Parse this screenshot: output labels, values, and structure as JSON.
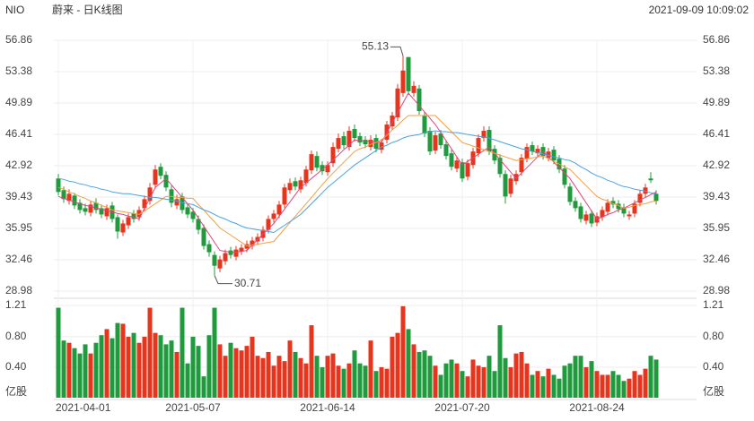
{
  "chart_data": {
    "type": "candlestick",
    "symbol": "NIO",
    "title": "蔚来 - 日K线图",
    "timestamp": "2021-09-09 10:09:02",
    "categories": [
      "2021-04-01",
      null,
      null,
      null,
      null,
      null,
      null,
      null,
      null,
      null,
      null,
      null,
      null,
      null,
      null,
      null,
      null,
      null,
      null,
      null,
      null,
      null,
      null,
      null,
      null,
      "2021-05-07",
      null,
      null,
      null,
      null,
      null,
      null,
      null,
      null,
      null,
      null,
      null,
      null,
      null,
      null,
      null,
      null,
      null,
      null,
      null,
      null,
      null,
      null,
      null,
      null,
      "2021-06-14",
      null,
      null,
      null,
      null,
      null,
      null,
      null,
      null,
      null,
      null,
      null,
      null,
      null,
      null,
      null,
      null,
      null,
      null,
      null,
      null,
      null,
      null,
      null,
      null,
      "2021-07-20",
      null,
      null,
      null,
      null,
      null,
      null,
      null,
      null,
      null,
      null,
      null,
      null,
      null,
      null,
      null,
      null,
      null,
      null,
      null,
      null,
      null,
      null,
      null,
      null,
      "2021-08-24",
      null,
      null,
      null,
      null,
      null,
      null,
      null,
      null,
      null,
      null,
      null
    ],
    "open": [
      41.5,
      40.2,
      39.0,
      39.6,
      38.8,
      38.2,
      37.7,
      38.8,
      38.2,
      37.3,
      38.5,
      37.2,
      35.5,
      36.3,
      37.6,
      37.2,
      38.2,
      39.0,
      40.8,
      42.8,
      41.9,
      40.3,
      38.5,
      39.5,
      38.3,
      37.8,
      37.0,
      36.0,
      34.2,
      33.0,
      31.5,
      32.3,
      33.5,
      32.8,
      33.4,
      33.7,
      34.0,
      34.5,
      34.9,
      35.8,
      37.0,
      37.5,
      38.6,
      40.2,
      41.2,
      40.3,
      41.0,
      42.4,
      44.0,
      43.0,
      42.2,
      43.2,
      44.8,
      46.2,
      45.0,
      47.0,
      46.2,
      45.8,
      45.0,
      46.0,
      44.7,
      45.8,
      47.3,
      48.3,
      51.0,
      55.0,
      51.0,
      51.5,
      48.5,
      46.8,
      44.6,
      46.5,
      45.3,
      44.3,
      42.6,
      43.3,
      41.7,
      43.0,
      44.3,
      46.0,
      46.9,
      44.8,
      43.8,
      42.0,
      39.8,
      41.2,
      42.2,
      43.7,
      45.2,
      44.3,
      45.0,
      43.8,
      44.7,
      43.7,
      42.6,
      40.6,
      39.0,
      38.4,
      36.8,
      37.6,
      36.6,
      37.2,
      37.8,
      39.0,
      38.7,
      38.3,
      37.3,
      37.6,
      38.8,
      39.8,
      41.5,
      39.8
    ],
    "high": [
      42.0,
      40.6,
      40.3,
      39.9,
      39.2,
      38.7,
      39.0,
      39.3,
      38.6,
      38.6,
      38.9,
      37.5,
      36.9,
      37.6,
      38.0,
      38.4,
      39.6,
      41.0,
      43.0,
      43.2,
      42.3,
      40.7,
      39.7,
      39.9,
      38.7,
      38.2,
      37.4,
      36.4,
      34.6,
      33.4,
      32.9,
      33.6,
      33.9,
      34.0,
      34.2,
      34.6,
      35.0,
      35.4,
      36.2,
      37.4,
      38.0,
      39.0,
      40.9,
      41.5,
      41.6,
      41.7,
      42.9,
      44.6,
      44.5,
      43.4,
      43.4,
      45.5,
      46.5,
      46.7,
      47.3,
      47.5,
      46.6,
      46.2,
      46.3,
      46.4,
      45.9,
      47.9,
      48.9,
      52.0,
      55.13,
      55.0,
      52.3,
      51.9,
      48.9,
      47.2,
      46.7,
      46.9,
      45.7,
      44.7,
      43.9,
      43.7,
      43.6,
      44.9,
      46.4,
      47.3,
      47.3,
      45.2,
      44.2,
      42.4,
      41.9,
      42.4,
      44.2,
      45.4,
      45.6,
      45.2,
      45.4,
      44.9,
      45.1,
      44.1,
      43.0,
      41.0,
      39.4,
      38.8,
      37.9,
      38.0,
      37.7,
      38.4,
      39.2,
      39.4,
      39.1,
      38.7,
      37.9,
      39.1,
      40.2,
      40.9,
      42.2,
      40.2
    ],
    "low": [
      39.6,
      38.8,
      38.6,
      38.1,
      37.6,
      37.4,
      37.3,
      37.6,
      37.1,
      36.9,
      36.6,
      34.8,
      35.1,
      35.9,
      36.6,
      36.8,
      37.8,
      38.6,
      40.4,
      41.4,
      40.1,
      38.3,
      38.1,
      37.6,
      37.1,
      36.6,
      35.3,
      33.6,
      32.8,
      30.71,
      31.1,
      31.9,
      32.6,
      32.4,
      33.0,
      33.3,
      33.6,
      34.1,
      34.5,
      35.4,
      36.6,
      37.1,
      38.2,
      39.8,
      40.2,
      39.9,
      40.6,
      42.0,
      42.3,
      41.9,
      41.8,
      42.8,
      44.4,
      44.8,
      44.6,
      45.6,
      45.1,
      44.9,
      44.6,
      44.4,
      44.3,
      45.4,
      46.9,
      47.9,
      50.6,
      50.8,
      50.6,
      48.6,
      46.1,
      44.1,
      44.2,
      44.8,
      43.6,
      42.4,
      42.2,
      41.1,
      41.3,
      42.6,
      43.9,
      45.6,
      44.1,
      43.1,
      41.6,
      38.7,
      39.4,
      40.8,
      41.8,
      43.3,
      44.1,
      43.9,
      43.6,
      43.4,
      43.1,
      42.1,
      40.4,
      38.5,
      37.8,
      36.6,
      36.4,
      36.1,
      36.2,
      36.8,
      37.4,
      38.2,
      37.7,
      37.2,
      36.9,
      37.2,
      38.4,
      39.4,
      41.0,
      38.6
    ],
    "close": [
      40.0,
      39.2,
      39.8,
      38.5,
      38.0,
      37.8,
      38.6,
      38.0,
      37.5,
      38.2,
      37.0,
      35.6,
      36.5,
      37.2,
      37.0,
      38.0,
      39.2,
      40.5,
      42.5,
      41.8,
      40.5,
      38.8,
      39.2,
      38.0,
      37.5,
      37.0,
      35.8,
      34.0,
      33.3,
      31.8,
      32.5,
      33.2,
      33.0,
      33.6,
      33.8,
      34.2,
      34.6,
      35.0,
      35.8,
      37.0,
      37.6,
      38.6,
      40.5,
      41.0,
      40.6,
      41.3,
      42.5,
      44.2,
      42.7,
      42.3,
      43.0,
      45.0,
      46.0,
      45.2,
      46.8,
      46.0,
      45.5,
      45.3,
      45.8,
      44.8,
      45.5,
      47.5,
      48.5,
      51.5,
      53.5,
      51.2,
      51.8,
      49.0,
      46.5,
      44.5,
      46.3,
      45.2,
      44.0,
      42.8,
      43.5,
      41.5,
      43.2,
      44.5,
      46.0,
      46.8,
      44.5,
      43.5,
      42.0,
      39.5,
      41.5,
      42.0,
      43.8,
      45.0,
      44.5,
      44.8,
      44.0,
      44.5,
      43.5,
      42.5,
      40.8,
      38.9,
      38.2,
      37.0,
      37.5,
      36.5,
      37.3,
      38.0,
      38.8,
      38.6,
      38.1,
      37.6,
      37.5,
      38.7,
      39.8,
      40.5,
      41.3,
      39.0
    ],
    "up_color": "#e8341c",
    "down_color": "#1f9a3c",
    "ylim": [
      28.98,
      56.86
    ],
    "yticks": [
      28.98,
      32.46,
      35.95,
      39.43,
      42.92,
      46.41,
      49.89,
      53.38,
      56.86
    ],
    "grid": true,
    "ma": [
      {
        "color": "#e0457b",
        "values": [
          39.5,
          39.3,
          39.1,
          38.9,
          38.7,
          38.5,
          38.4,
          38.2,
          38.1,
          37.9,
          37.8,
          37.6,
          37.5,
          37.3,
          37.2,
          37.0,
          38.2,
          39.3,
          40.5,
          41.0,
          41.5,
          40.8,
          40.1,
          39.4,
          38.7,
          38.0,
          37.1,
          36.2,
          35.3,
          34.4,
          33.5,
          33.4,
          33.3,
          33.3,
          33.4,
          33.5,
          34.1,
          34.7,
          35.3,
          35.9,
          36.5,
          37.3,
          38.1,
          38.9,
          39.7,
          40.5,
          41.0,
          41.5,
          42.0,
          42.5,
          43.0,
          43.6,
          44.1,
          44.7,
          45.2,
          45.8,
          45.7,
          45.7,
          45.6,
          45.6,
          45.5,
          46.6,
          47.7,
          48.8,
          49.9,
          51.0,
          50.3,
          49.6,
          48.9,
          48.2,
          47.5,
          46.6,
          45.7,
          44.8,
          43.9,
          43.0,
          43.4,
          43.8,
          44.2,
          44.6,
          45.0,
          44.3,
          43.6,
          42.9,
          42.2,
          41.5,
          42.1,
          42.7,
          43.3,
          43.9,
          44.5,
          43.9,
          43.3,
          42.7,
          42.1,
          41.5,
          40.6,
          39.7,
          38.8,
          37.9,
          37.0,
          37.2,
          37.5,
          37.7,
          38.0,
          38.2,
          38.5,
          38.8,
          39.1,
          39.4,
          39.7,
          40.0
        ]
      },
      {
        "color": "#f0a040",
        "values": [
          40.5,
          40.3,
          40.0,
          39.8,
          39.5,
          39.3,
          39.0,
          38.8,
          38.5,
          38.3,
          38.0,
          37.9,
          37.8,
          37.7,
          37.6,
          37.5,
          37.9,
          38.3,
          38.7,
          39.1,
          39.5,
          39.5,
          39.4,
          39.4,
          39.3,
          39.3,
          38.6,
          38.0,
          37.3,
          36.7,
          36.0,
          35.6,
          35.2,
          34.8,
          34.4,
          34.0,
          34.1,
          34.2,
          34.3,
          34.4,
          34.5,
          35.2,
          35.9,
          36.6,
          37.3,
          38.0,
          38.7,
          39.4,
          40.1,
          40.8,
          41.5,
          42.1,
          42.7,
          43.3,
          43.9,
          44.5,
          44.8,
          45.0,
          45.3,
          45.5,
          45.8,
          46.3,
          46.9,
          47.4,
          48.0,
          48.5,
          48.5,
          48.5,
          48.5,
          48.5,
          48.5,
          47.9,
          47.3,
          46.7,
          46.1,
          45.5,
          45.3,
          45.1,
          44.9,
          44.7,
          44.5,
          44.3,
          44.1,
          43.9,
          43.7,
          43.5,
          43.6,
          43.7,
          43.8,
          43.9,
          44.0,
          43.7,
          43.4,
          43.1,
          42.8,
          42.5,
          41.9,
          41.3,
          40.7,
          40.1,
          39.5,
          39.2,
          39.0,
          38.7,
          38.5,
          38.2,
          38.3,
          38.5,
          38.6,
          38.7,
          38.9,
          39.0
        ]
      },
      {
        "color": "#4aa3df",
        "values": [
          41.5,
          41.4,
          41.2,
          41.1,
          40.9,
          40.8,
          40.6,
          40.5,
          40.3,
          40.2,
          40.0,
          39.9,
          39.8,
          39.8,
          39.7,
          39.6,
          39.5,
          39.4,
          39.4,
          39.3,
          39.2,
          39.1,
          39.0,
          38.8,
          38.7,
          38.6,
          38.3,
          38.0,
          37.8,
          37.5,
          37.2,
          37.0,
          36.7,
          36.5,
          36.2,
          36.0,
          35.9,
          35.8,
          35.7,
          35.6,
          35.5,
          35.9,
          36.3,
          36.7,
          37.1,
          37.5,
          38.1,
          38.7,
          39.3,
          39.9,
          40.5,
          41.0,
          41.5,
          42.0,
          42.5,
          43.0,
          43.4,
          43.8,
          44.2,
          44.6,
          45.0,
          45.2,
          45.5,
          45.7,
          46.0,
          46.2,
          46.3,
          46.4,
          46.6,
          46.7,
          46.8,
          46.7,
          46.7,
          46.6,
          46.6,
          46.5,
          46.4,
          46.3,
          46.2,
          46.1,
          46.0,
          45.8,
          45.6,
          45.4,
          45.2,
          45.0,
          44.8,
          44.7,
          44.5,
          44.4,
          44.2,
          44.1,
          43.9,
          43.8,
          43.6,
          43.5,
          43.2,
          42.8,
          42.5,
          42.1,
          41.8,
          41.6,
          41.3,
          41.1,
          40.8,
          40.6,
          40.5,
          40.3,
          40.2,
          40.1,
          39.9,
          39.8
        ]
      }
    ],
    "volume": {
      "unit": "亿股",
      "values": [
        1.18,
        0.75,
        0.72,
        0.65,
        0.58,
        0.7,
        0.58,
        0.72,
        0.82,
        0.9,
        0.78,
        0.98,
        0.97,
        0.8,
        0.85,
        0.72,
        0.8,
        1.18,
        0.85,
        0.82,
        0.7,
        0.75,
        0.6,
        1.18,
        0.45,
        0.8,
        0.68,
        0.28,
        0.82,
        1.18,
        0.7,
        0.55,
        0.72,
        0.65,
        0.62,
        0.68,
        0.8,
        0.55,
        0.52,
        0.6,
        0.42,
        0.55,
        0.48,
        0.75,
        0.6,
        0.52,
        0.45,
        0.95,
        0.55,
        0.4,
        0.55,
        0.58,
        0.42,
        0.38,
        0.45,
        0.62,
        0.45,
        0.42,
        0.75,
        0.35,
        0.4,
        0.38,
        0.8,
        0.85,
        1.2,
        0.9,
        0.7,
        0.6,
        0.62,
        0.55,
        0.42,
        0.3,
        0.45,
        0.5,
        0.45,
        0.35,
        0.28,
        0.5,
        0.42,
        0.4,
        0.55,
        0.35,
        0.95,
        0.52,
        0.4,
        0.58,
        0.6,
        0.45,
        0.3,
        0.35,
        0.28,
        0.38,
        0.3,
        0.25,
        0.42,
        0.45,
        0.55,
        0.55,
        0.4,
        0.48,
        0.35,
        0.3,
        0.3,
        0.35,
        0.3,
        0.22,
        0.25,
        0.35,
        0.3,
        0.38,
        0.55,
        0.5
      ],
      "ylim": [
        0,
        1.21
      ],
      "yticks": [
        {
          "value": 0.4,
          "label": "0.40"
        },
        {
          "value": 0.8,
          "label": "0.80"
        },
        1.21
      ]
    }
  }
}
